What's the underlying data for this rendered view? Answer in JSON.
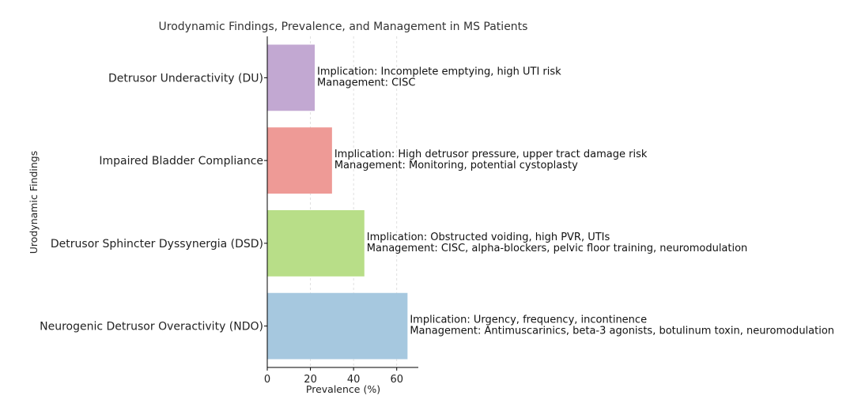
{
  "chart_data": {
    "type": "bar",
    "orientation": "horizontal",
    "title": "Urodynamic Findings, Prevalence, and Management in MS Patients",
    "xlabel": "Prevalence (%)",
    "ylabel": "Urodynamic Findings",
    "xlim": [
      0,
      70
    ],
    "xticks": [
      0,
      20,
      40,
      60
    ],
    "grid": "x-dashed",
    "categories": [
      "Neurogenic Detrusor Overactivity (NDO)",
      "Detrusor Sphincter Dyssynergia (DSD)",
      "Impaired Bladder Compliance",
      "Detrusor Underactivity (DU)"
    ],
    "values": [
      65,
      45,
      30,
      22
    ],
    "colors": [
      "#a6c8df",
      "#b8de88",
      "#ee9a96",
      "#c2a8d2"
    ],
    "annotations": [
      {
        "implication": "Implication: Urgency, frequency, incontinence",
        "management": "Management: Antimuscarinics, beta-3 agonists, botulinum toxin, neuromodulation"
      },
      {
        "implication": "Implication: Obstructed voiding, high PVR, UTIs",
        "management": "Management: CISC, alpha-blockers, pelvic floor training, neuromodulation"
      },
      {
        "implication": "Implication: High detrusor pressure, upper tract damage risk",
        "management": "Management: Monitoring, potential cystoplasty"
      },
      {
        "implication": "Implication: Incomplete emptying, high UTI risk",
        "management": "Management: CISC"
      }
    ]
  }
}
